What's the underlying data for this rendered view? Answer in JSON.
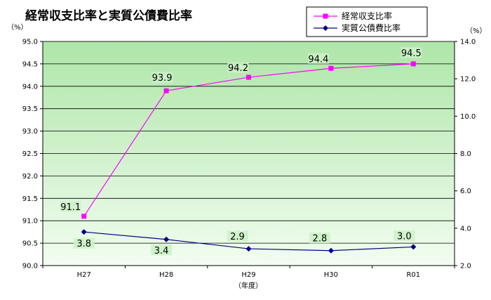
{
  "chart_data": {
    "type": "line",
    "title": "経常収支比率と実質公債費比率",
    "categories": [
      "H27",
      "H28",
      "H29",
      "H30",
      "R01"
    ],
    "xlabel": "（年度）",
    "left_axis": {
      "unit": "（%）",
      "ylim": [
        90.0,
        95.0
      ],
      "ticks": [
        "90.0",
        "90.5",
        "91.0",
        "91.5",
        "92.0",
        "92.5",
        "93.0",
        "93.5",
        "94.0",
        "94.5",
        "95.0"
      ]
    },
    "right_axis": {
      "unit": "（%）",
      "ylim": [
        2.0,
        14.0
      ],
      "ticks": [
        "2.0",
        "4.0",
        "6.0",
        "8.0",
        "10.0",
        "12.0",
        "14.0"
      ]
    },
    "grid": true,
    "legend_position": "top-right",
    "series": [
      {
        "name": "経常収支比率",
        "axis": "left",
        "color": "#ff00ff",
        "marker": "square",
        "values": [
          91.1,
          93.9,
          94.2,
          94.4,
          94.5
        ],
        "labels": [
          "91.1",
          "93.9",
          "94.2",
          "94.4",
          "94.5"
        ]
      },
      {
        "name": "実質公債費比率",
        "axis": "right",
        "color": "#000080",
        "marker": "diamond",
        "values": [
          3.8,
          3.4,
          2.9,
          2.8,
          3.0
        ],
        "labels": [
          "3.8",
          "3.4",
          "2.9",
          "2.8",
          "3.0"
        ]
      }
    ]
  }
}
